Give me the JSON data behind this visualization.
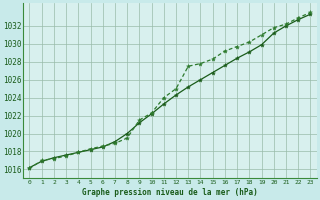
{
  "xlabel": "Graphe pression niveau de la mer (hPa)",
  "background_color": "#c8eaea",
  "plot_bg_color": "#d8f0ee",
  "grid_color": "#99bbaa",
  "line_color1": "#1a5c1a",
  "line_color2": "#2d7a2d",
  "ylim": [
    1015.0,
    1034.5
  ],
  "xlim": [
    -0.5,
    23.5
  ],
  "yticks": [
    1016,
    1018,
    1020,
    1022,
    1024,
    1026,
    1028,
    1030,
    1032
  ],
  "xticks": [
    0,
    1,
    2,
    3,
    4,
    5,
    6,
    7,
    8,
    9,
    10,
    11,
    12,
    13,
    14,
    15,
    16,
    17,
    18,
    19,
    20,
    21,
    22,
    23
  ],
  "series1_x": [
    0,
    1,
    2,
    3,
    4,
    5,
    6,
    7,
    8,
    9,
    10,
    11,
    12,
    13,
    14,
    15,
    16,
    17,
    18,
    19,
    20,
    21,
    22,
    23
  ],
  "series1_y": [
    1016.2,
    1016.9,
    1017.3,
    1017.6,
    1017.9,
    1018.2,
    1018.5,
    1019.1,
    1020.0,
    1021.2,
    1022.2,
    1023.3,
    1024.3,
    1025.2,
    1026.0,
    1026.8,
    1027.6,
    1028.4,
    1029.1,
    1029.9,
    1031.2,
    1032.0,
    1032.7,
    1033.3
  ],
  "series2_x": [
    0,
    1,
    2,
    3,
    4,
    5,
    6,
    7,
    8,
    9,
    10,
    11,
    12,
    13,
    14,
    15,
    16,
    17,
    18,
    19,
    20,
    21,
    22,
    23
  ],
  "series2_y": [
    1016.1,
    1017.0,
    1017.2,
    1017.5,
    1017.9,
    1018.3,
    1018.6,
    1018.9,
    1019.5,
    1021.5,
    1022.3,
    1024.0,
    1025.0,
    1027.5,
    1027.8,
    1028.3,
    1029.2,
    1029.7,
    1030.2,
    1031.0,
    1031.8,
    1032.2,
    1032.9,
    1033.5
  ],
  "ytick_fontsize": 5.5,
  "xtick_fontsize": 4.5
}
